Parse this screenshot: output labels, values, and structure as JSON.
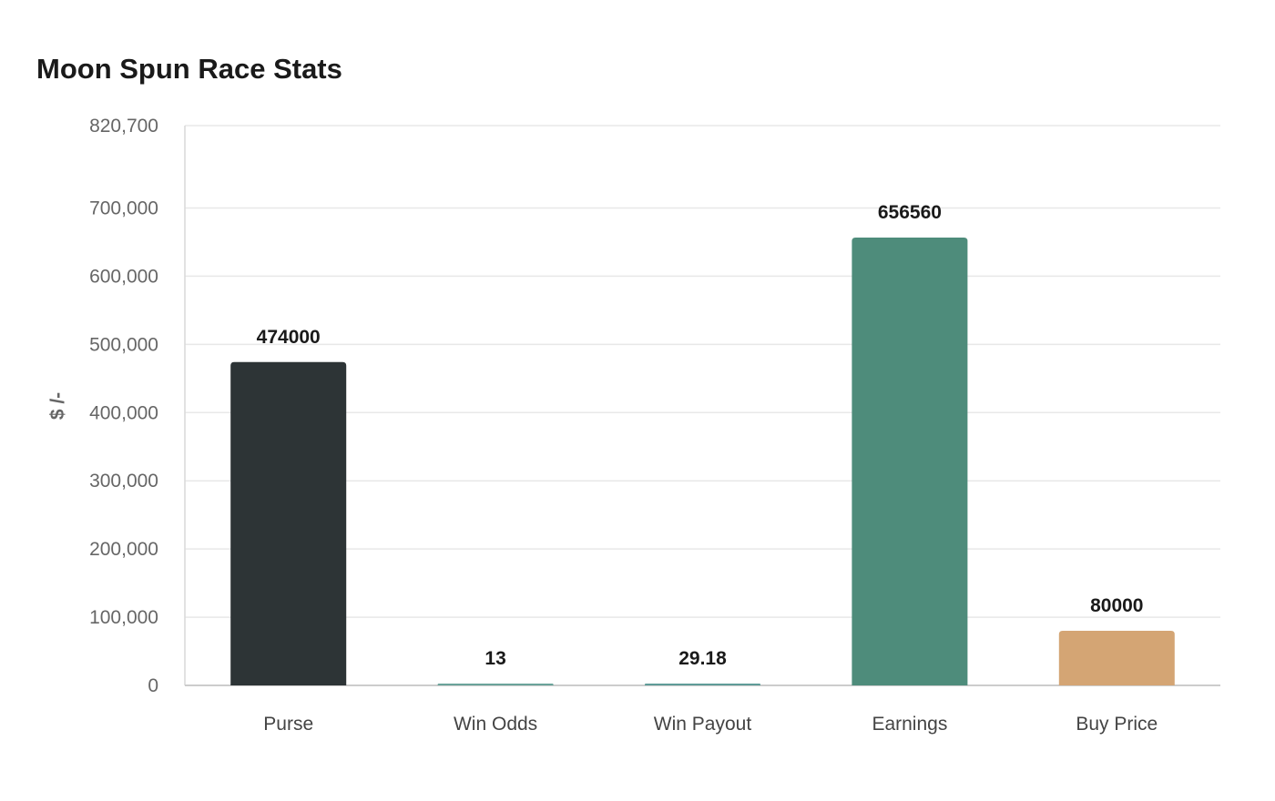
{
  "chart_data": {
    "type": "bar",
    "title": "Moon Spun Race Stats",
    "xlabel": "",
    "ylabel": "$ /-",
    "categories": [
      "Purse",
      "Win Odds",
      "Win Payout",
      "Earnings",
      "Buy Price"
    ],
    "values": [
      474000,
      13,
      29.18,
      656560,
      80000
    ],
    "value_labels": [
      "474000",
      "13",
      "29.18",
      "656560",
      "80000"
    ],
    "colors": [
      "#2d3436",
      "#6aa39a",
      "#5f9c98",
      "#4e8c7b",
      "#d4a574"
    ],
    "ylim": [
      0,
      820700
    ],
    "yticks": [
      0,
      100000,
      200000,
      300000,
      400000,
      500000,
      600000,
      700000,
      820700
    ],
    "ytick_labels": [
      "0",
      "100,000",
      "200,000",
      "300,000",
      "400,000",
      "500,000",
      "600,000",
      "700,000",
      "820,700"
    ],
    "grid": true,
    "legend": "none"
  }
}
